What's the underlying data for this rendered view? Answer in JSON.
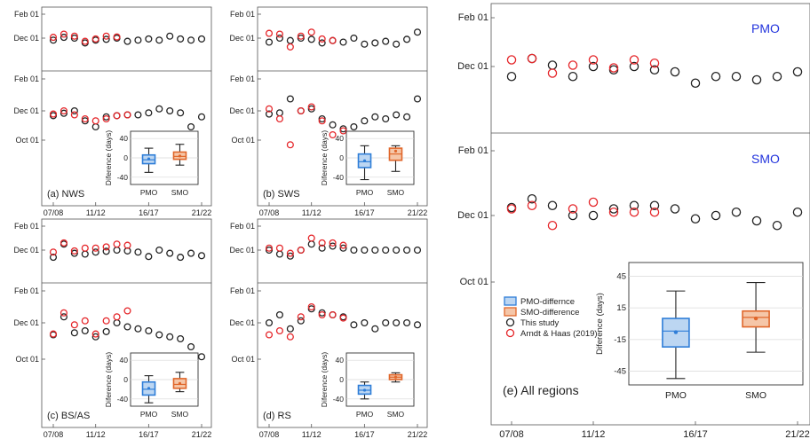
{
  "x_tick_labels": [
    "07/08",
    "11/12",
    "16/17",
    "21/22"
  ],
  "y_tick_labels": [
    "Feb 01",
    "Dec 01",
    "Oct 01"
  ],
  "inset": {
    "ylabel": "Diference (days)",
    "small_ticks": [
      "40",
      "0",
      "-40"
    ],
    "large_ticks": [
      "45",
      "15",
      "-15",
      "-45"
    ],
    "categories": [
      "PMO",
      "SMO"
    ]
  },
  "legend": {
    "items": [
      {
        "label": "PMO-differnce",
        "kind": "box",
        "color": "#2f7ed8"
      },
      {
        "label": "SMO-difference",
        "kind": "box",
        "color": "#e0662a"
      },
      {
        "label": "This study",
        "kind": "circle",
        "color": "#222222"
      },
      {
        "label": "Arndt & Haas (2019)",
        "kind": "circle",
        "color": "#e5262a"
      }
    ]
  },
  "chart_data": [
    {
      "type": "scatter",
      "panel": "a",
      "label": "(a) NWS",
      "x": [
        2007,
        2008,
        2009,
        2010,
        2011,
        2012,
        2013,
        2014,
        2015,
        2016,
        2017,
        2018,
        2019,
        2020,
        2021
      ],
      "upper": {
        "series": [
          {
            "name": "This study",
            "values": [
              -5,
              2,
              0,
              -12,
              -5,
              -3,
              0,
              -8,
              -5,
              -2,
              -5,
              5,
              -2,
              -5,
              -2
            ]
          },
          {
            "name": "Arndt & Haas (2019)",
            "values": [
              2,
              10,
              5,
              -8,
              -2,
              5,
              3,
              null,
              null,
              null,
              null,
              null,
              null,
              null,
              null
            ]
          }
        ]
      },
      "lower": {
        "series": [
          {
            "name": "This study",
            "values": [
              -12,
              -6,
              0,
              -25,
              -40,
              -15,
              -12,
              -10,
              -10,
              -5,
              5,
              0,
              -5,
              -40,
              -15
            ]
          },
          {
            "name": "Arndt & Haas (2019)",
            "values": [
              -8,
              0,
              -10,
              -20,
              -25,
              -20,
              -12,
              -10,
              null,
              null,
              null,
              null,
              null,
              null,
              null
            ]
          }
        ],
        "inset": {
          "PMO": {
            "q1": -12,
            "median": -4,
            "q3": 6,
            "min": -30,
            "max": 20,
            "mean": -2
          },
          "SMO": {
            "q1": -3,
            "median": 3,
            "q3": 12,
            "min": -15,
            "max": 28,
            "mean": 4
          }
        }
      }
    },
    {
      "type": "scatter",
      "panel": "b",
      "label": "(b) SWS",
      "x": [
        2007,
        2008,
        2009,
        2010,
        2011,
        2012,
        2013,
        2014,
        2015,
        2016,
        2017,
        2018,
        2019,
        2020,
        2021
      ],
      "upper": {
        "series": [
          {
            "name": "This study",
            "values": [
              -10,
              0,
              -6,
              0,
              -3,
              -12,
              -6,
              -10,
              0,
              -15,
              -12,
              -8,
              -15,
              -3,
              15
            ]
          },
          {
            "name": "Arndt & Haas (2019)",
            "values": [
              12,
              10,
              -22,
              5,
              15,
              -2,
              -6,
              null,
              null,
              null,
              null,
              null,
              null,
              null,
              null
            ]
          }
        ]
      },
      "lower": {
        "series": [
          {
            "name": "This study",
            "values": [
              -8,
              -5,
              30,
              0,
              5,
              -20,
              -35,
              -45,
              -40,
              -25,
              -15,
              -20,
              -10,
              -15,
              30
            ]
          },
          {
            "name": "Arndt & Haas (2019)",
            "values": [
              5,
              -20,
              -85,
              0,
              10,
              -25,
              -60,
              -50,
              null,
              null,
              null,
              null,
              null,
              null,
              null
            ]
          }
        ],
        "inset": {
          "PMO": {
            "q1": -20,
            "median": -8,
            "q3": 8,
            "min": -45,
            "max": 25,
            "mean": -6
          },
          "SMO": {
            "q1": -5,
            "median": 8,
            "q3": 20,
            "min": -28,
            "max": 25,
            "mean": 14
          }
        }
      }
    },
    {
      "type": "scatter",
      "panel": "c",
      "label": "(c) BS/AS",
      "x": [
        2007,
        2008,
        2009,
        2010,
        2011,
        2012,
        2013,
        2014,
        2015,
        2016,
        2017,
        2018,
        2019,
        2020,
        2021
      ],
      "upper": {
        "series": [
          {
            "name": "This study",
            "values": [
              -18,
              15,
              -8,
              -10,
              -5,
              -3,
              0,
              -2,
              -5,
              -16,
              0,
              -8,
              -18,
              -8,
              -14
            ]
          },
          {
            "name": "Arndt & Haas (2019)",
            "values": [
              -5,
              18,
              -2,
              5,
              5,
              8,
              15,
              12,
              null,
              null,
              null,
              null,
              null,
              null,
              null
            ]
          }
        ]
      },
      "lower": {
        "series": [
          {
            "name": "This study",
            "values": [
              -30,
              15,
              -25,
              -20,
              -35,
              -22,
              0,
              -10,
              -15,
              -20,
              -30,
              -35,
              -40,
              -60,
              -85
            ]
          },
          {
            "name": "Arndt & Haas (2019)",
            "values": [
              -28,
              25,
              -5,
              5,
              -28,
              5,
              15,
              30,
              null,
              null,
              null,
              null,
              null,
              null,
              null
            ]
          }
        ],
        "inset": {
          "PMO": {
            "q1": -32,
            "median": -20,
            "q3": -5,
            "min": -48,
            "max": 8,
            "mean": -18
          },
          "SMO": {
            "q1": -18,
            "median": -10,
            "q3": 2,
            "min": -25,
            "max": 15,
            "mean": -8
          }
        }
      }
    },
    {
      "type": "scatter",
      "panel": "d",
      "label": "(d) RS",
      "x": [
        2007,
        2008,
        2009,
        2010,
        2011,
        2012,
        2013,
        2014,
        2015,
        2016,
        2017,
        2018,
        2019,
        2020,
        2021
      ],
      "upper": {
        "series": [
          {
            "name": "This study",
            "values": [
              0,
              -10,
              -15,
              0,
              15,
              5,
              10,
              5,
              0,
              0,
              0,
              0,
              0,
              0,
              0
            ]
          },
          {
            "name": "Arndt & Haas (2019)",
            "values": [
              5,
              5,
              -8,
              0,
              30,
              18,
              18,
              12,
              null,
              null,
              null,
              null,
              null,
              null,
              null
            ]
          }
        ]
      },
      "lower": {
        "series": [
          {
            "name": "This study",
            "values": [
              0,
              20,
              -15,
              5,
              35,
              25,
              20,
              15,
              -5,
              0,
              -15,
              0,
              0,
              0,
              -5
            ]
          },
          {
            "name": "Arndt & Haas (2019)",
            "values": [
              -30,
              -20,
              -35,
              15,
              40,
              20,
              20,
              12,
              null,
              null,
              null,
              null,
              null,
              null,
              null
            ]
          }
        ],
        "inset": {
          "PMO": {
            "q1": -30,
            "median": -22,
            "q3": -12,
            "min": -40,
            "max": -5,
            "mean": -22
          },
          "SMO": {
            "q1": 0,
            "median": 5,
            "q3": 10,
            "min": -5,
            "max": 14,
            "mean": 5
          }
        }
      }
    },
    {
      "type": "scatter",
      "panel": "e",
      "label": "(e) All regions",
      "x": [
        2007,
        2008,
        2009,
        2010,
        2011,
        2012,
        2013,
        2014,
        2015,
        2016,
        2017,
        2018,
        2019,
        2020,
        2021
      ],
      "upper": {
        "title": "PMO",
        "series": [
          {
            "name": "This study",
            "values": [
              -15,
              12,
              2,
              -15,
              0,
              -5,
              0,
              -5,
              -8,
              -25,
              -15,
              -15,
              -20,
              -15,
              -8
            ]
          },
          {
            "name": "Arndt & Haas (2019)",
            "values": [
              10,
              12,
              -10,
              2,
              10,
              -2,
              10,
              5,
              null,
              null,
              null,
              null,
              null,
              null,
              null
            ]
          }
        ]
      },
      "lower": {
        "title": "SMO",
        "series": [
          {
            "name": "This study",
            "values": [
              12,
              25,
              15,
              0,
              0,
              10,
              15,
              15,
              10,
              -5,
              0,
              5,
              -8,
              -15,
              5
            ]
          },
          {
            "name": "Arndt & Haas (2019)",
            "values": [
              10,
              15,
              -15,
              10,
              20,
              5,
              5,
              5,
              null,
              null,
              null,
              null,
              null,
              null,
              null
            ]
          }
        ],
        "inset": {
          "PMO": {
            "q1": -22,
            "median": -7,
            "q3": 5,
            "min": -52,
            "max": 31,
            "mean": -8
          },
          "SMO": {
            "q1": -3,
            "median": 6,
            "q3": 12,
            "min": -27,
            "max": 39,
            "mean": 5
          }
        }
      }
    }
  ]
}
